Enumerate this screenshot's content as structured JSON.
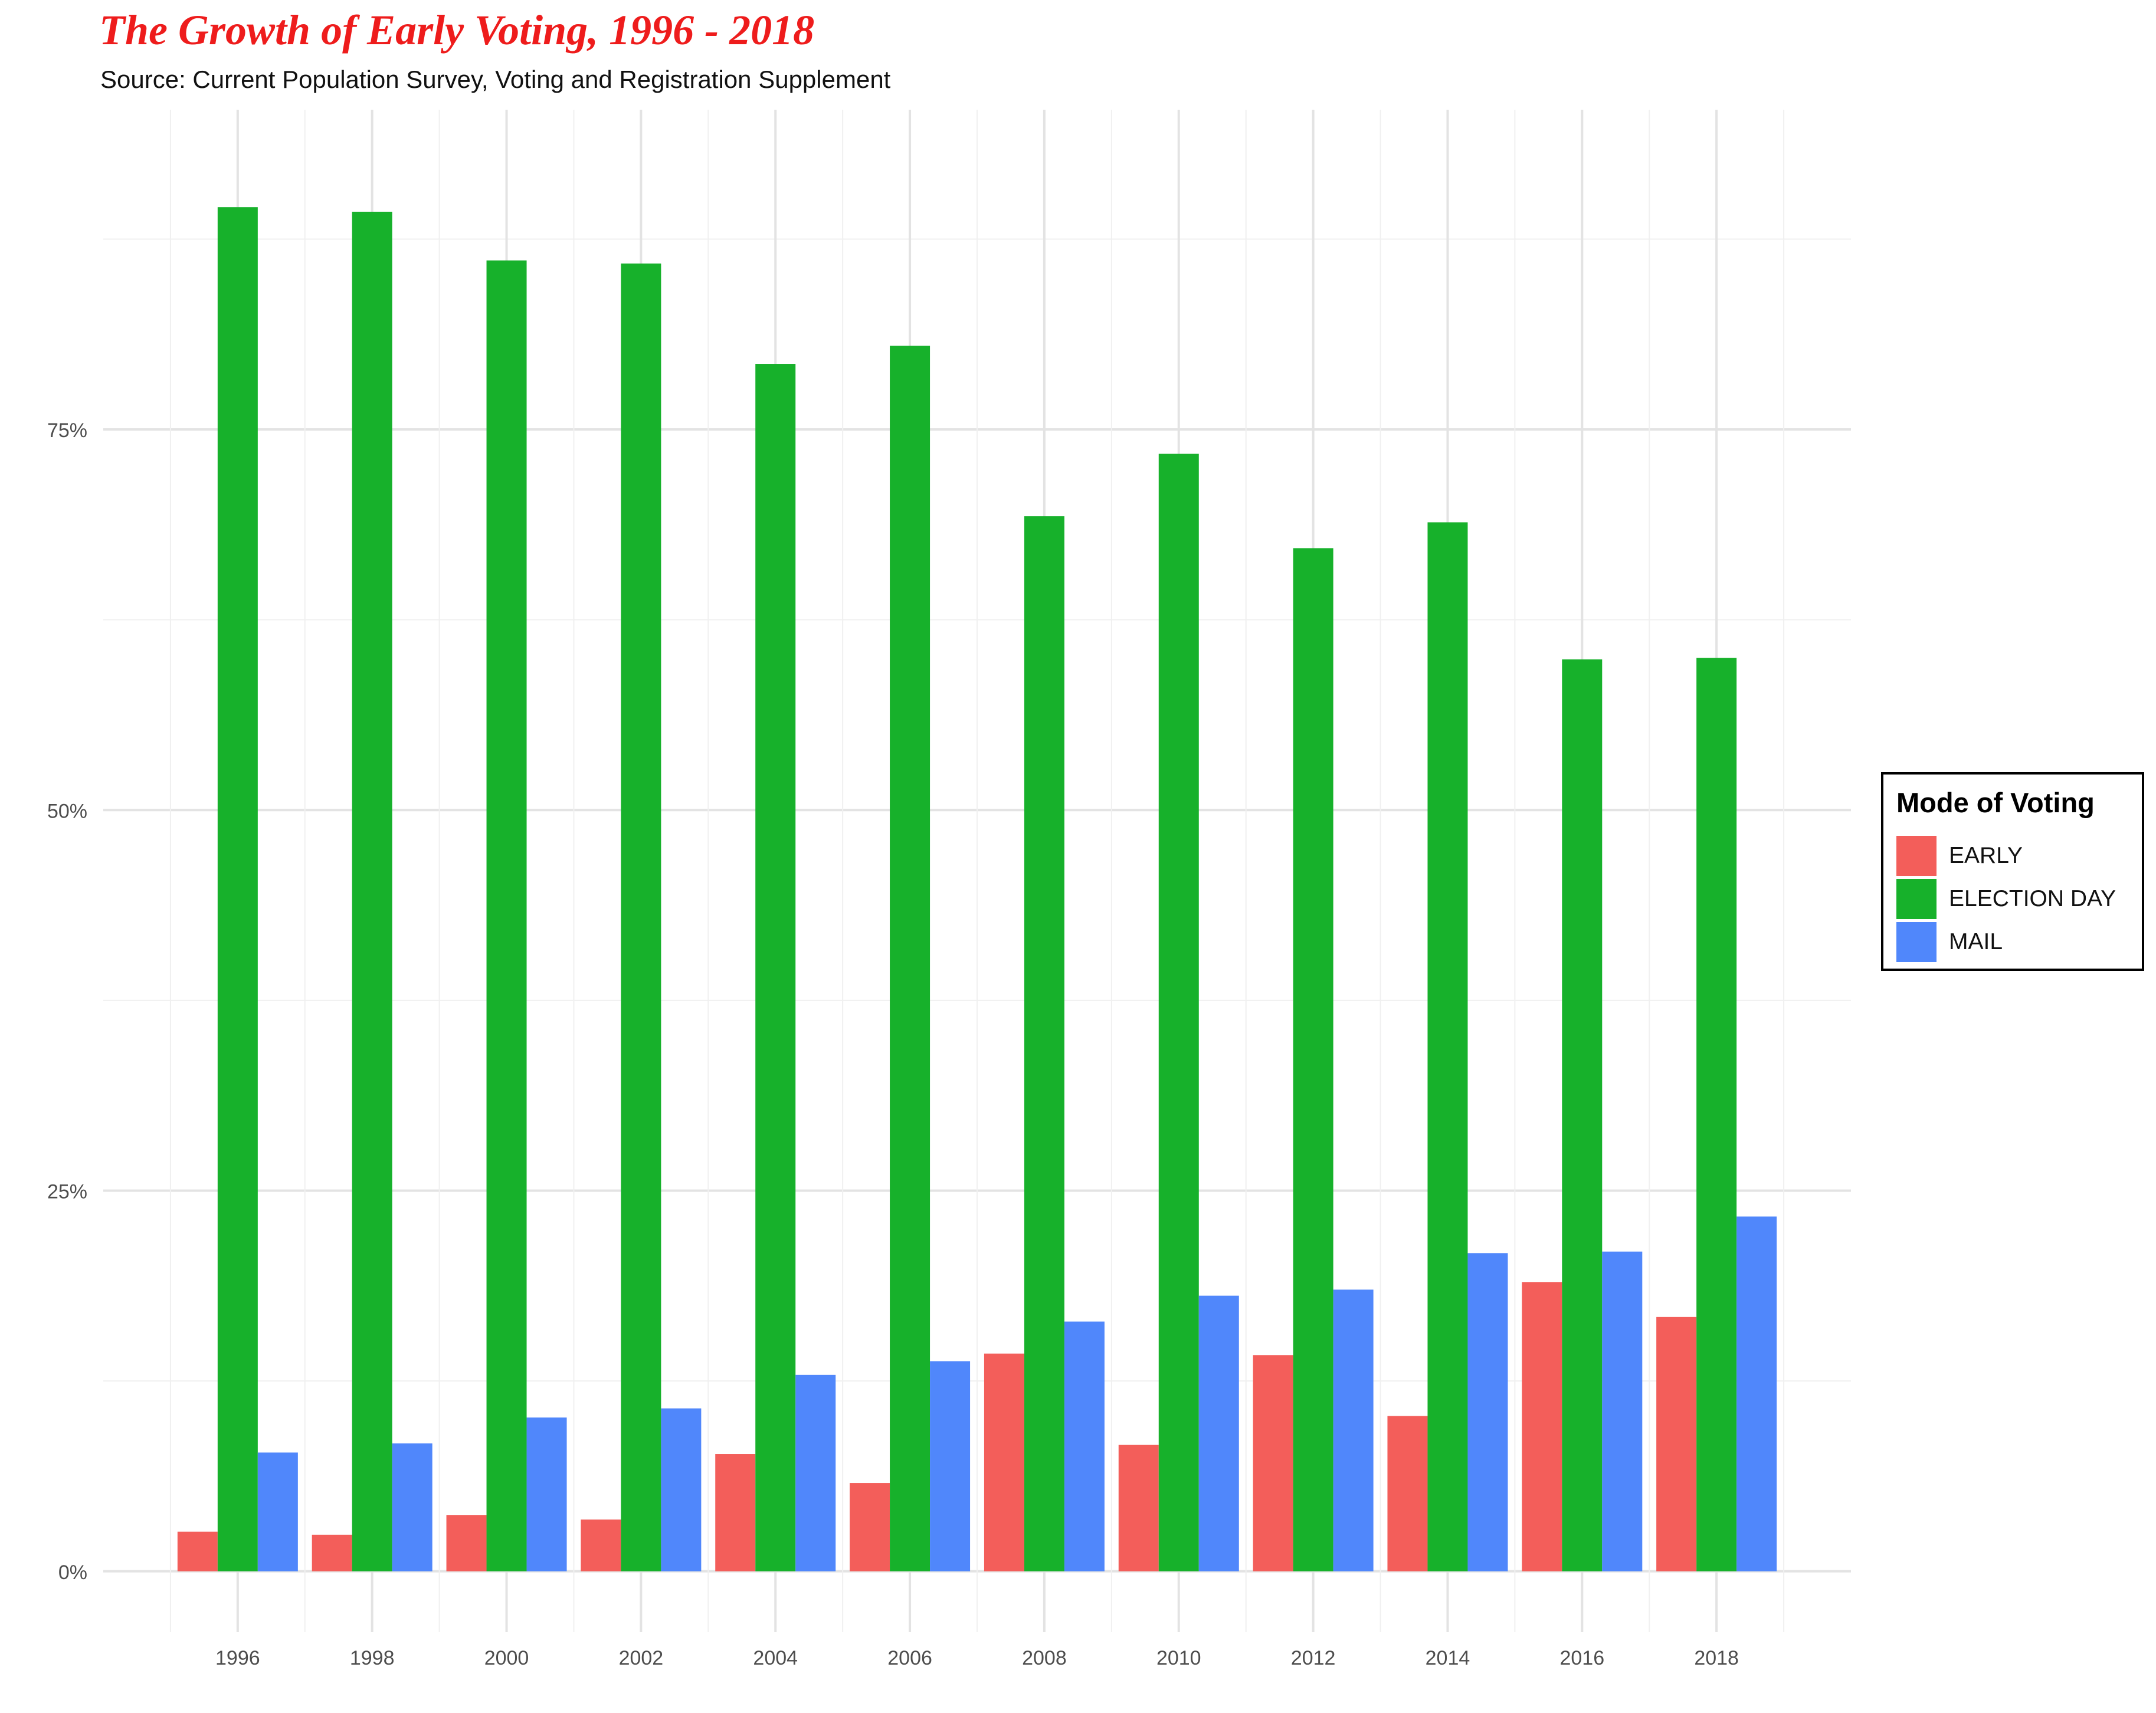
{
  "header": {
    "title": "The Growth of Early Voting, 1996 - 2018",
    "subtitle": "Source: Current Population Survey, Voting and Registration Supplement"
  },
  "legend": {
    "title": "Mode of Voting",
    "position": "right",
    "items": [
      {
        "label": "EARLY",
        "color": "#f35e5a"
      },
      {
        "label": "ELECTION DAY",
        "color": "#17b12b"
      },
      {
        "label": "MAIL",
        "color": "#5087fb"
      }
    ]
  },
  "chart_data": {
    "type": "bar",
    "title": "The Growth of Early Voting, 1996 - 2018",
    "subtitle": "Source: Current Population Survey, Voting and Registration Supplement",
    "xlabel": "",
    "ylabel": "",
    "categories": [
      "1996",
      "1998",
      "2000",
      "2002",
      "2004",
      "2006",
      "2008",
      "2010",
      "2012",
      "2014",
      "2016",
      "2018"
    ],
    "y_ticks": [
      {
        "value": 0,
        "label": "0%"
      },
      {
        "value": 25,
        "label": "25%"
      },
      {
        "value": 50,
        "label": "50%"
      },
      {
        "value": 75,
        "label": "75%"
      }
    ],
    "ylim": [
      -4,
      96
    ],
    "grid": true,
    "legend_position": "right",
    "series": [
      {
        "name": "EARLY",
        "color": "#f35e5a",
        "values": [
          2.6,
          2.4,
          3.7,
          3.4,
          7.7,
          5.8,
          14.3,
          8.3,
          14.2,
          10.2,
          19.0,
          16.7
        ]
      },
      {
        "name": "ELECTION DAY",
        "color": "#17b12b",
        "values": [
          89.6,
          89.3,
          86.1,
          85.9,
          79.3,
          80.5,
          69.3,
          73.4,
          67.2,
          68.9,
          59.9,
          60.0
        ]
      },
      {
        "name": "MAIL",
        "color": "#5087fb",
        "values": [
          7.8,
          8.4,
          10.1,
          10.7,
          12.9,
          13.8,
          16.4,
          18.1,
          18.5,
          20.9,
          21.0,
          23.3
        ]
      }
    ]
  }
}
